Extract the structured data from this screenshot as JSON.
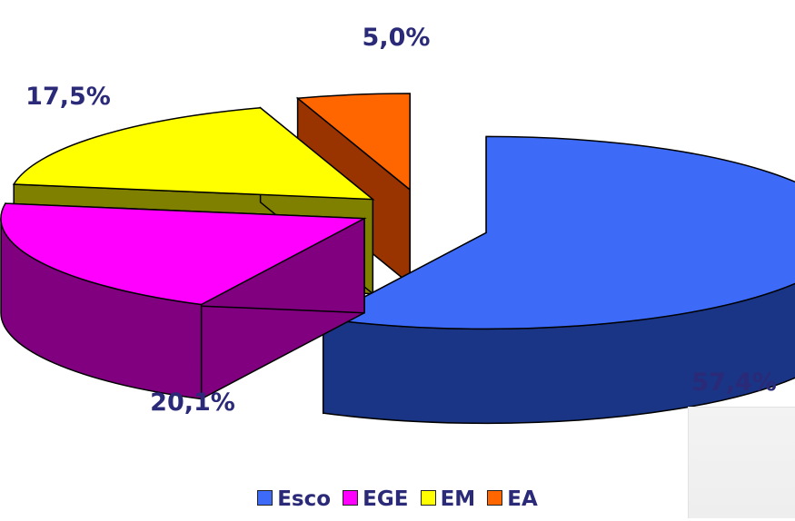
{
  "chart_data": {
    "type": "pie",
    "categories": [
      "Esco",
      "EGE",
      "EM",
      "EA"
    ],
    "values": [
      57.4,
      20.1,
      17.5,
      5.0
    ],
    "value_labels": [
      "57,4%",
      "20,1%",
      "17,5%",
      "5,0%"
    ],
    "unit": "%",
    "three_d": true,
    "exploded": true,
    "legend_position": "bottom",
    "colors": {
      "Esco": {
        "top": "#3d6bf7",
        "side": "#1a3585"
      },
      "EGE": {
        "top": "#ff00ff",
        "side": "#800080"
      },
      "EM": {
        "top": "#ffff00",
        "side": "#808000"
      },
      "EA": {
        "top": "#ff6600",
        "side": "#993300"
      }
    },
    "label_color": "#2a2a78"
  }
}
